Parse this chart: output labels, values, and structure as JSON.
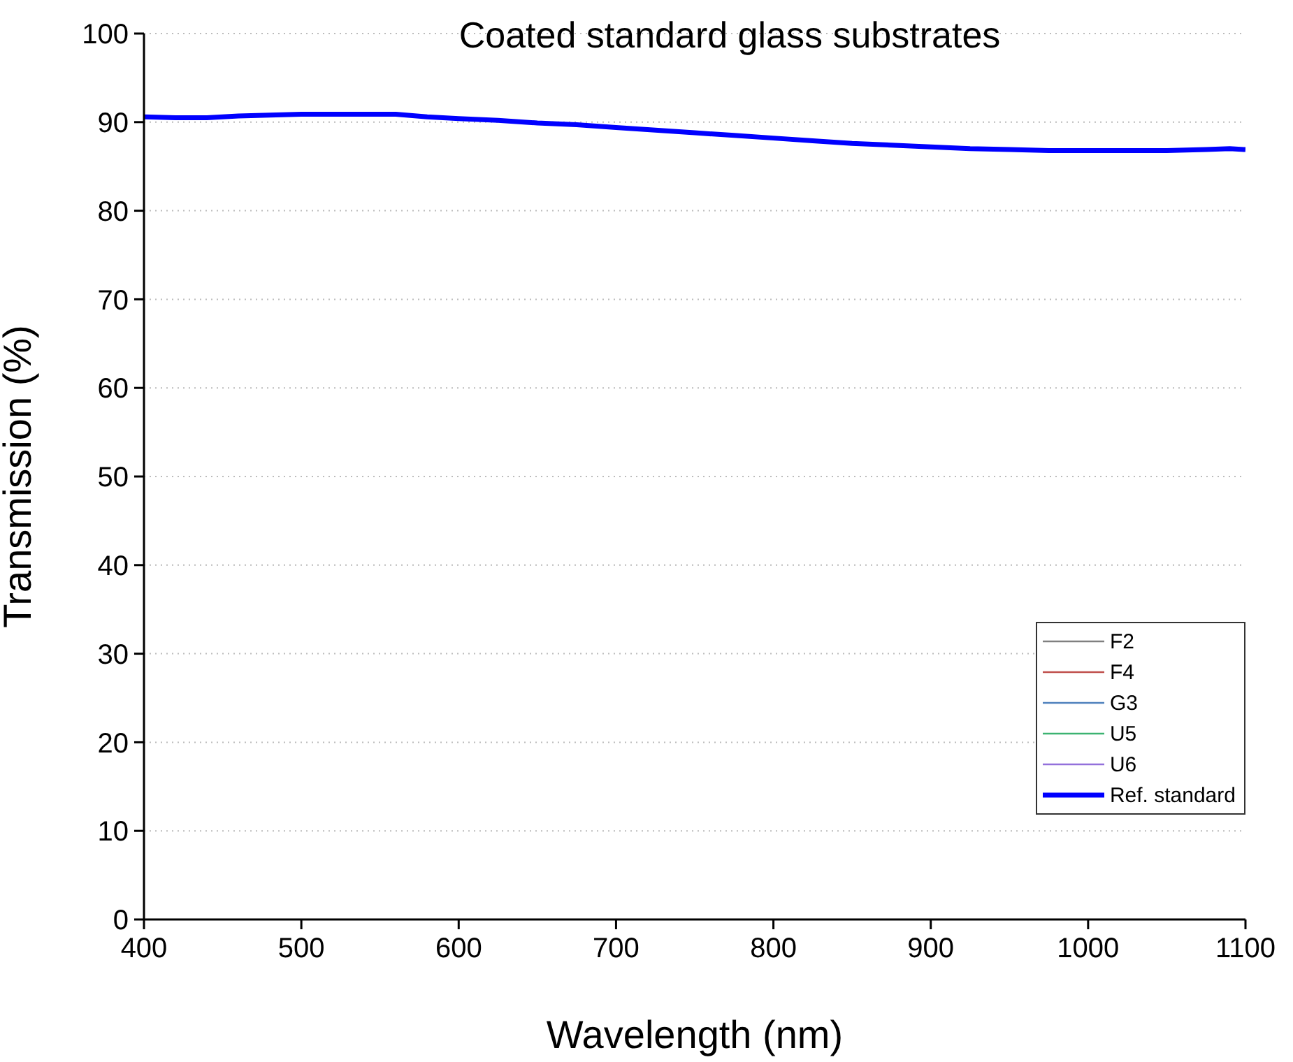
{
  "chart_data": {
    "type": "line",
    "title": "Coated standard glass substrates",
    "xlabel": "Wavelength (nm)",
    "ylabel": "Transmission (%)",
    "x": [
      400,
      420,
      440,
      460,
      480,
      500,
      520,
      540,
      560,
      580,
      600,
      625,
      650,
      675,
      700,
      725,
      750,
      775,
      800,
      825,
      850,
      875,
      900,
      925,
      950,
      975,
      1000,
      1025,
      1050,
      1075,
      1090,
      1100
    ],
    "series": [
      {
        "name": "F2",
        "color": "#808080",
        "values": [
          null,
          null,
          null,
          null,
          null,
          null,
          null,
          null,
          null,
          null,
          null,
          null,
          null,
          null,
          null,
          null,
          null,
          null,
          null,
          null,
          null,
          null,
          null,
          null,
          null,
          null,
          null,
          null,
          null,
          null,
          null,
          null
        ]
      },
      {
        "name": "F4",
        "color": "#c0504d",
        "values": [
          null,
          null,
          null,
          null,
          null,
          null,
          null,
          null,
          null,
          null,
          null,
          null,
          null,
          null,
          null,
          null,
          null,
          null,
          null,
          null,
          null,
          null,
          null,
          null,
          null,
          null,
          null,
          null,
          null,
          null,
          null,
          null
        ]
      },
      {
        "name": "G3",
        "color": "#4f81bd",
        "values": [
          null,
          null,
          null,
          null,
          null,
          null,
          null,
          null,
          null,
          null,
          null,
          null,
          null,
          null,
          null,
          null,
          null,
          null,
          null,
          null,
          null,
          null,
          null,
          null,
          null,
          null,
          null,
          null,
          null,
          null,
          null,
          null
        ]
      },
      {
        "name": "U5",
        "color": "#3cb371",
        "values": [
          null,
          null,
          null,
          null,
          null,
          null,
          null,
          null,
          null,
          null,
          null,
          null,
          null,
          null,
          null,
          null,
          null,
          null,
          null,
          null,
          null,
          null,
          null,
          null,
          null,
          null,
          null,
          null,
          null,
          null,
          null,
          null
        ]
      },
      {
        "name": "U6",
        "color": "#9370db",
        "values": [
          null,
          null,
          null,
          null,
          null,
          null,
          null,
          null,
          null,
          null,
          null,
          null,
          null,
          null,
          null,
          null,
          null,
          null,
          null,
          null,
          null,
          null,
          null,
          null,
          null,
          null,
          null,
          null,
          null,
          null,
          null,
          null
        ]
      },
      {
        "name": "Ref. standard",
        "color": "#0000ff",
        "values": [
          90.6,
          90.5,
          90.5,
          90.7,
          90.8,
          90.9,
          90.9,
          90.9,
          90.9,
          90.6,
          90.4,
          90.2,
          89.9,
          89.7,
          89.4,
          89.1,
          88.8,
          88.5,
          88.2,
          87.9,
          87.6,
          87.4,
          87.2,
          87.0,
          86.9,
          86.8,
          86.8,
          86.8,
          86.8,
          86.9,
          87.0,
          86.9
        ]
      }
    ],
    "xlim": [
      400,
      1100
    ],
    "xticks": [
      400,
      500,
      600,
      700,
      800,
      900,
      1000,
      1100
    ],
    "ylim": [
      0,
      100
    ],
    "yticks": [
      0,
      10,
      20,
      30,
      40,
      50,
      60,
      70,
      80,
      90,
      100
    ],
    "grid": "y",
    "legend": "bottom right",
    "marker": "none",
    "line_style": "solid"
  }
}
